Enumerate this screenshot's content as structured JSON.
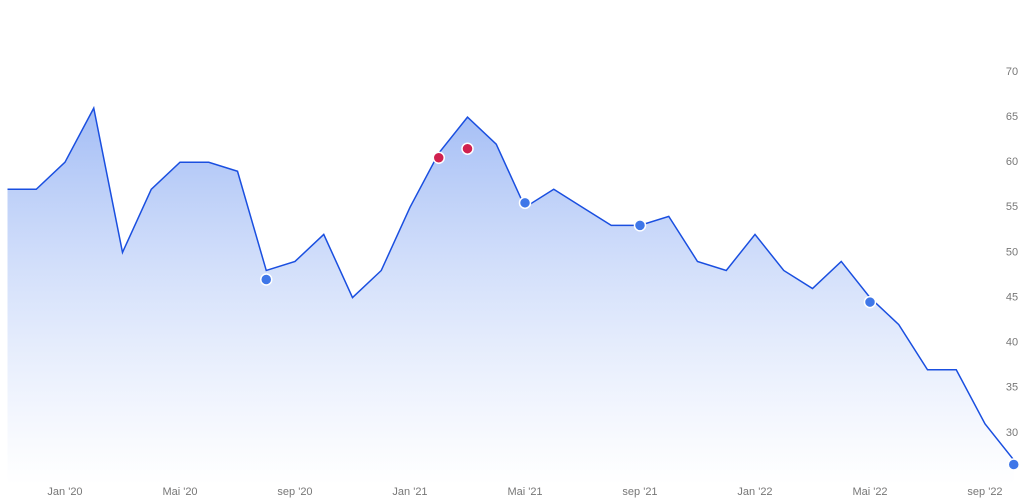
{
  "chart_data": {
    "type": "line",
    "x": [
      "2019-11",
      "2019-12",
      "2020-01",
      "2020-02",
      "2020-03",
      "2020-04",
      "2020-05",
      "2020-06",
      "2020-07",
      "2020-08",
      "2020-09",
      "2020-10",
      "2020-11",
      "2020-12",
      "2021-01",
      "2021-02",
      "2021-03",
      "2021-04",
      "2021-05",
      "2021-06",
      "2021-07",
      "2021-08",
      "2021-09",
      "2021-10",
      "2021-11",
      "2021-12",
      "2022-01",
      "2022-02",
      "2022-03",
      "2022-04",
      "2022-05",
      "2022-06",
      "2022-07",
      "2022-08",
      "2022-09",
      "2022-10"
    ],
    "series": [
      {
        "color": "#1a4fe0",
        "values": [
          57,
          57,
          60,
          66,
          50,
          57,
          60,
          60,
          59,
          48,
          49,
          52,
          45,
          48,
          55,
          61,
          65,
          62,
          55,
          57,
          55,
          53,
          53,
          54,
          49,
          48,
          52,
          48,
          46,
          49,
          45,
          42,
          37,
          37,
          31,
          27
        ]
      }
    ],
    "markers": [
      {
        "color": "#3f77e8",
        "x": [
          "2020-08",
          "2021-05",
          "2021-09",
          "2022-05",
          "2022-10"
        ],
        "values": [
          47,
          55.5,
          53,
          44.5,
          26.5
        ]
      },
      {
        "color": "#d0214f",
        "x": [
          "2021-02",
          "2021-03"
        ],
        "values": [
          60.5,
          61.5
        ]
      }
    ],
    "xlim": [
      "2019-11",
      "2022-10"
    ],
    "xticks": [
      {
        "value": "2020-01",
        "label": "Jan '20"
      },
      {
        "value": "2020-05",
        "label": "Mai '20"
      },
      {
        "value": "2020-09",
        "label": "sep '20"
      },
      {
        "value": "2021-01",
        "label": "Jan '21"
      },
      {
        "value": "2021-05",
        "label": "Mai '21"
      },
      {
        "value": "2021-09",
        "label": "sep '21"
      },
      {
        "value": "2022-01",
        "label": "Jan '22"
      },
      {
        "value": "2022-05",
        "label": "Mai '22"
      },
      {
        "value": "2022-09",
        "label": "sep '22"
      }
    ],
    "ylim": [
      25,
      70
    ],
    "yticks": [
      30,
      35,
      40,
      45,
      50,
      55,
      60,
      65,
      70
    ],
    "grid": false
  }
}
